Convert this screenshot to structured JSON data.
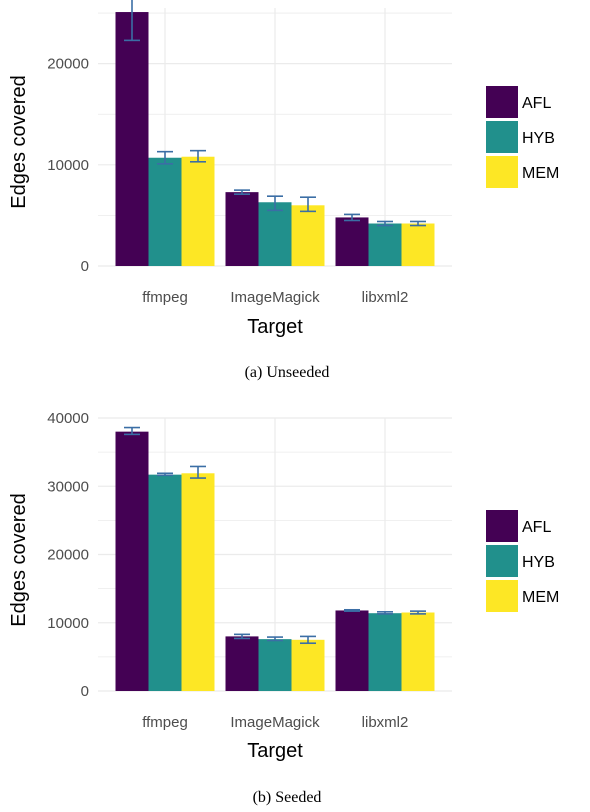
{
  "chart_data": [
    {
      "type": "bar",
      "caption": "(a) Unseeded",
      "xlabel": "Target",
      "ylabel": "Edges covered",
      "categories": [
        "ffmpeg",
        "ImageMagick",
        "libxml2"
      ],
      "ylim": [
        0,
        25500
      ],
      "yticks": [
        0,
        10000,
        20000
      ],
      "series": [
        {
          "name": "AFL",
          "values": [
            25100,
            7300,
            4800
          ],
          "err_low": [
            22300,
            7100,
            4500
          ],
          "err_high": [
            27900,
            7500,
            5100
          ]
        },
        {
          "name": "HYB",
          "values": [
            10700,
            6300,
            4200
          ],
          "err_low": [
            10100,
            5500,
            4000
          ],
          "err_high": [
            11300,
            6900,
            4400
          ]
        },
        {
          "name": "MEM",
          "values": [
            10800,
            6000,
            4200
          ],
          "err_low": [
            10300,
            5400,
            4000
          ],
          "err_high": [
            11400,
            6800,
            4400
          ]
        }
      ],
      "grid": true,
      "legend": "right"
    },
    {
      "type": "bar",
      "caption": "(b) Seeded",
      "xlabel": "Target",
      "ylabel": "Edges covered",
      "categories": [
        "ffmpeg",
        "ImageMagick",
        "libxml2"
      ],
      "ylim": [
        0,
        40000
      ],
      "yticks": [
        0,
        10000,
        20000,
        30000,
        40000
      ],
      "series": [
        {
          "name": "AFL",
          "values": [
            38000,
            8000,
            11800
          ],
          "err_low": [
            37600,
            7700,
            11700
          ],
          "err_high": [
            38600,
            8300,
            11900
          ]
        },
        {
          "name": "HYB",
          "values": [
            31700,
            7600,
            11400
          ],
          "err_low": [
            31600,
            7400,
            11300
          ],
          "err_high": [
            31900,
            7900,
            11600
          ]
        },
        {
          "name": "MEM",
          "values": [
            31900,
            7500,
            11500
          ],
          "err_low": [
            31200,
            7000,
            11300
          ],
          "err_high": [
            32900,
            8000,
            11700
          ]
        }
      ],
      "grid": true,
      "legend": "right"
    }
  ],
  "colors": {
    "AFL": "#440154",
    "HYB": "#21908c",
    "MEM": "#fde725",
    "errorbar": "#3b6ea5",
    "grid": "#ebebeb"
  }
}
